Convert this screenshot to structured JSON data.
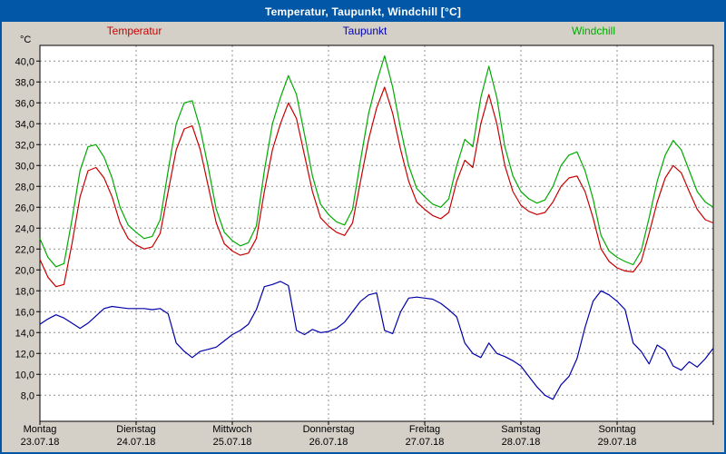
{
  "window": {
    "title": "Temperatur, Taupunkt, Windchill [°C]"
  },
  "legend": [
    {
      "label": "Temperatur",
      "color": "#cc0000"
    },
    {
      "label": "Taupunkt",
      "color": "#0000bb"
    },
    {
      "label": "Windchill",
      "color": "#00aa00"
    }
  ],
  "axis": {
    "unit": "°C",
    "y_label_min": 8,
    "y_label_max": 40,
    "y_step": 2,
    "decimal_separator": ",",
    "grid_color": "#909090",
    "plot_background": "#ffffff",
    "panel_background": "#d4d0c8",
    "titlebar_color": "#0257a7"
  },
  "x_axis": {
    "days": [
      {
        "name": "Montag",
        "date": "23.07.18"
      },
      {
        "name": "Dienstag",
        "date": "24.07.18"
      },
      {
        "name": "Mittwoch",
        "date": "25.07.18"
      },
      {
        "name": "Donnerstag",
        "date": "26.07.18"
      },
      {
        "name": "Freitag",
        "date": "27.07.18"
      },
      {
        "name": "Samstag",
        "date": "28.07.18"
      },
      {
        "name": "Sonntag",
        "date": "29.07.18"
      }
    ]
  },
  "chart_data": {
    "type": "line",
    "title": "Temperatur, Taupunkt, Windchill [°C]",
    "xlabel": "",
    "ylabel": "°C",
    "x_unit": "hours",
    "x_step_hours": 2,
    "x_range_hours": [
      0,
      168
    ],
    "ylim_plot": [
      5.5,
      41.5
    ],
    "y_gridlines": [
      8,
      10,
      12,
      14,
      16,
      18,
      20,
      22,
      24,
      26,
      28,
      30,
      32,
      34,
      36,
      38,
      40
    ],
    "grid": "dashed",
    "legend_position": "top",
    "series": [
      {
        "name": "Temperatur",
        "color": "#c80000",
        "values": [
          21.0,
          19.3,
          18.4,
          18.6,
          22.5,
          27.0,
          29.5,
          29.8,
          28.8,
          27.0,
          24.5,
          23.0,
          22.4,
          22.0,
          22.2,
          23.5,
          27.5,
          31.5,
          33.5,
          33.8,
          31.5,
          28.0,
          24.5,
          22.5,
          21.8,
          21.4,
          21.6,
          23.0,
          27.5,
          31.5,
          34.0,
          36.0,
          34.5,
          31.0,
          27.5,
          25.0,
          24.2,
          23.6,
          23.3,
          24.5,
          28.5,
          32.5,
          35.5,
          37.5,
          35.0,
          31.5,
          28.5,
          26.5,
          25.8,
          25.2,
          24.9,
          25.5,
          28.5,
          30.5,
          29.8,
          34.0,
          36.8,
          34.0,
          30.0,
          27.5,
          26.2,
          25.6,
          25.3,
          25.5,
          26.5,
          28.0,
          28.8,
          29.0,
          27.5,
          25.0,
          22.0,
          20.8,
          20.2,
          19.9,
          19.8,
          20.8,
          23.5,
          26.5,
          28.8,
          30.0,
          29.3,
          27.5,
          25.8,
          24.8,
          24.5
        ]
      },
      {
        "name": "Taupunkt",
        "color": "#0000aa",
        "values": [
          14.8,
          15.3,
          15.7,
          15.4,
          14.9,
          14.4,
          14.9,
          15.6,
          16.3,
          16.5,
          16.4,
          16.3,
          16.3,
          16.3,
          16.2,
          16.3,
          15.8,
          13.0,
          12.2,
          11.6,
          12.2,
          12.4,
          12.6,
          13.2,
          13.8,
          14.2,
          14.8,
          16.2,
          18.4,
          18.6,
          18.9,
          18.5,
          14.2,
          13.8,
          14.3,
          14.0,
          14.1,
          14.4,
          15.0,
          16.0,
          17.0,
          17.6,
          17.8,
          14.2,
          13.9,
          16.0,
          17.3,
          17.4,
          17.3,
          17.2,
          16.8,
          16.2,
          15.5,
          13.0,
          12.0,
          11.6,
          13.0,
          12.0,
          11.7,
          11.3,
          10.8,
          9.8,
          8.8,
          8.0,
          7.6,
          9.0,
          9.8,
          11.5,
          14.5,
          17.0,
          18.0,
          17.6,
          17.0,
          16.2,
          13.0,
          12.2,
          11.0,
          12.8,
          12.3,
          10.8,
          10.4,
          11.2,
          10.7,
          11.5,
          12.5
        ]
      },
      {
        "name": "Windchill",
        "color": "#00aa00",
        "values": [
          23.0,
          21.2,
          20.3,
          20.6,
          24.8,
          29.5,
          31.8,
          32.0,
          30.8,
          28.8,
          26.0,
          24.3,
          23.6,
          23.0,
          23.2,
          24.8,
          29.5,
          34.0,
          36.0,
          36.2,
          33.5,
          29.8,
          25.8,
          23.6,
          22.8,
          22.3,
          22.6,
          24.2,
          29.5,
          34.0,
          36.5,
          38.6,
          36.8,
          33.0,
          29.0,
          26.3,
          25.3,
          24.6,
          24.3,
          25.8,
          30.5,
          35.0,
          38.0,
          40.5,
          37.5,
          33.5,
          30.0,
          27.8,
          27.0,
          26.3,
          26.0,
          26.8,
          30.0,
          32.5,
          31.8,
          36.5,
          39.5,
          36.5,
          31.8,
          29.0,
          27.5,
          26.8,
          26.4,
          26.7,
          28.0,
          30.0,
          31.0,
          31.3,
          29.5,
          26.8,
          23.3,
          21.8,
          21.2,
          20.8,
          20.5,
          21.8,
          25.0,
          28.5,
          31.0,
          32.4,
          31.5,
          29.5,
          27.5,
          26.5,
          26.0
        ]
      }
    ]
  }
}
